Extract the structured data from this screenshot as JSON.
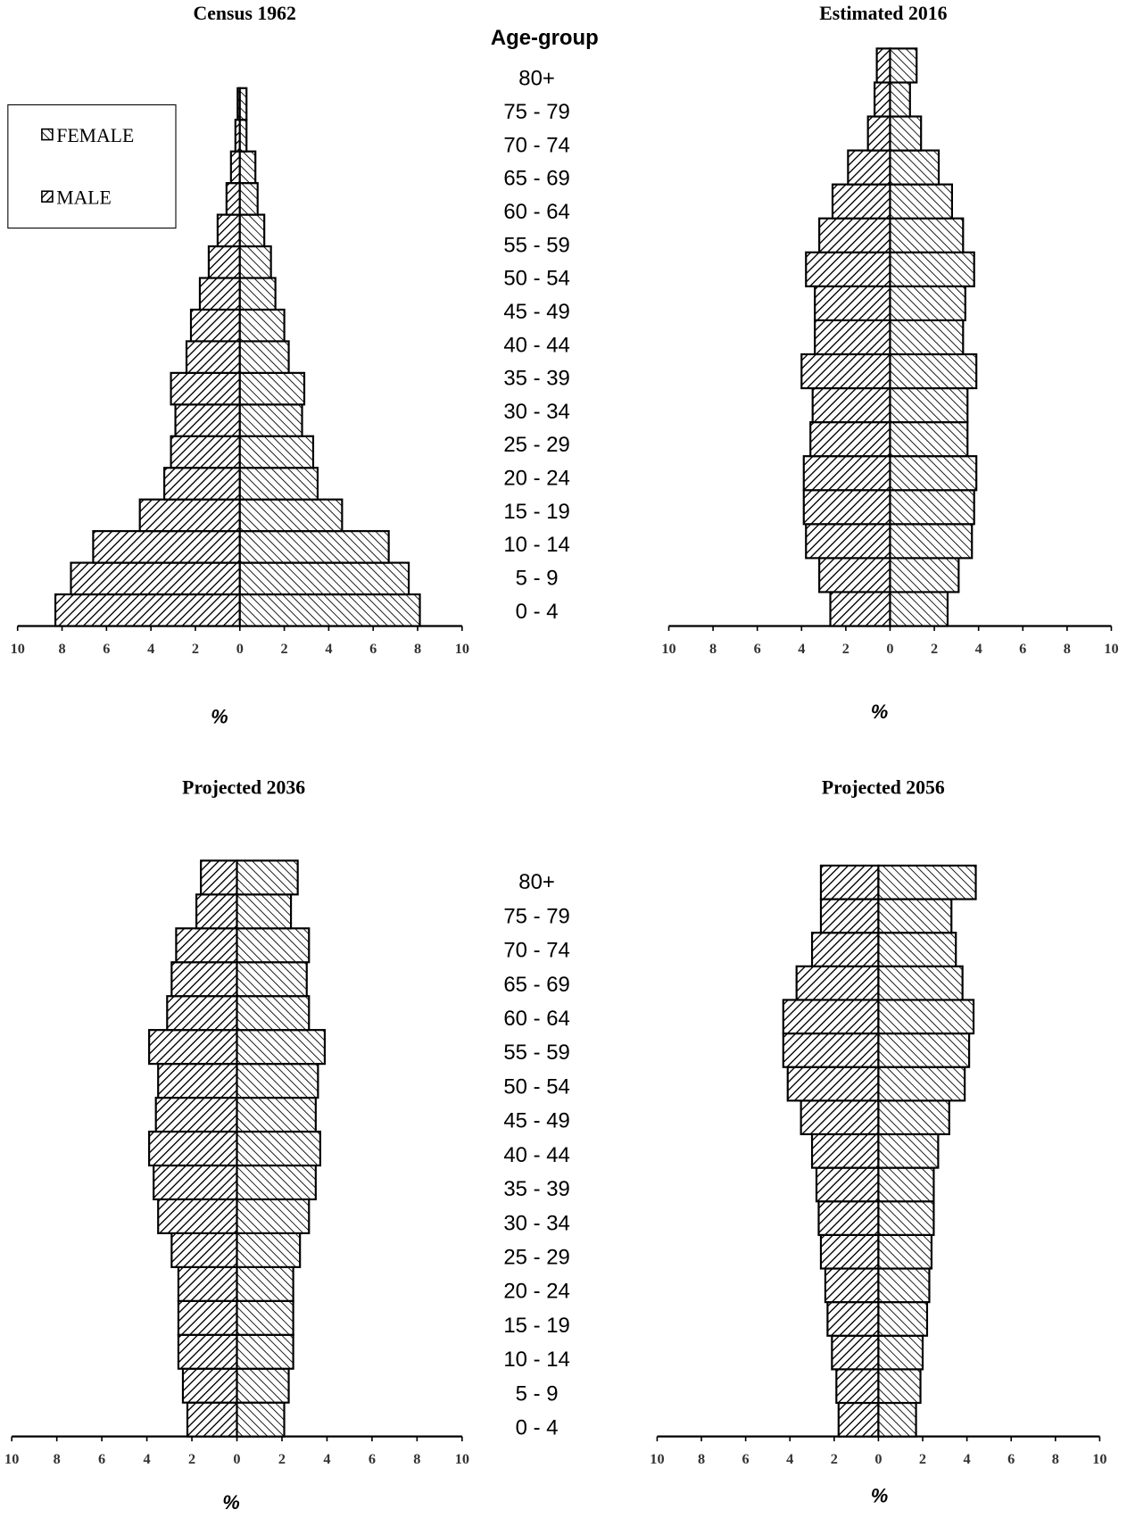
{
  "chart_data": [
    {
      "type": "pyramid",
      "title": "Census 1962",
      "categories_title": "Age-group",
      "x_label": "%",
      "categories": [
        "0 - 4",
        "5 - 9",
        "10 - 14",
        "15 - 19",
        "20 - 24",
        "25 - 29",
        "30 - 34",
        "35 - 39",
        "40 - 44",
        "45 - 49",
        "50 - 54",
        "55 - 59",
        "60 - 64",
        "65 - 69",
        "70 - 74",
        "75 - 79",
        "80+"
      ],
      "series": [
        {
          "name": "MALE",
          "color": "#000000",
          "values": [
            8.3,
            7.6,
            6.6,
            4.5,
            3.4,
            3.1,
            2.9,
            3.1,
            2.4,
            2.2,
            1.8,
            1.4,
            1.0,
            0.6,
            0.4,
            0.2,
            0.1
          ]
        },
        {
          "name": "FEMALE",
          "color": "#000000",
          "values": [
            8.1,
            7.6,
            6.7,
            4.6,
            3.5,
            3.3,
            2.8,
            2.9,
            2.2,
            2.0,
            1.6,
            1.4,
            1.1,
            0.8,
            0.7,
            0.3,
            0.3
          ]
        }
      ],
      "xlim": [
        -10,
        10
      ],
      "xticks": [
        {
          "value": -10,
          "label": "10"
        },
        {
          "value": -8,
          "label": "8"
        },
        {
          "value": -6,
          "label": "6"
        },
        {
          "value": -4,
          "label": "4"
        },
        {
          "value": -2,
          "label": "2"
        },
        0,
        2,
        4,
        6,
        8,
        10
      ]
    },
    {
      "type": "pyramid",
      "title": "Estimated 2016",
      "x_label": "%",
      "series": [
        {
          "color": "#000000",
          "values": [
            2.7,
            3.2,
            3.8,
            3.9,
            3.9,
            3.6,
            3.5,
            4.0,
            3.4,
            3.4,
            3.8,
            3.2,
            2.6,
            1.9,
            1.0,
            0.7,
            0.6
          ]
        },
        {
          "color": "#000000",
          "values": [
            2.6,
            3.1,
            3.7,
            3.8,
            3.9,
            3.5,
            3.5,
            3.9,
            3.3,
            3.4,
            3.8,
            3.3,
            2.8,
            2.2,
            1.4,
            0.9,
            1.2
          ]
        }
      ],
      "xlim": [
        -10,
        10
      ],
      "xticks": [
        {
          "value": -10,
          "label": "10"
        },
        {
          "value": -8,
          "label": "8"
        },
        {
          "value": -6,
          "label": "6"
        },
        {
          "value": -4,
          "label": "4"
        },
        {
          "value": -2,
          "label": "2"
        },
        0,
        2,
        4,
        6,
        8,
        10
      ]
    },
    {
      "type": "pyramid",
      "title": "Projected 2036",
      "x_label": "%",
      "categories": [
        "0 - 4",
        "5 - 9",
        "10 - 14",
        "15 - 19",
        "20 - 24",
        "25 - 29",
        "30 - 34",
        "35 - 39",
        "40 - 44",
        "45 - 49",
        "50 - 54",
        "55 - 59",
        "60 - 64",
        "65 - 69",
        "70 - 74",
        "75 - 79",
        "80+"
      ],
      "series": [
        {
          "color": "#000000",
          "values": [
            2.2,
            2.4,
            2.6,
            2.6,
            2.6,
            2.9,
            3.5,
            3.7,
            3.9,
            3.6,
            3.5,
            3.9,
            3.1,
            2.9,
            2.7,
            1.8,
            1.6
          ]
        },
        {
          "color": "#000000",
          "values": [
            2.1,
            2.3,
            2.5,
            2.5,
            2.5,
            2.8,
            3.2,
            3.5,
            3.7,
            3.5,
            3.6,
            3.9,
            3.2,
            3.1,
            3.2,
            2.4,
            2.7
          ]
        }
      ],
      "xlim": [
        -10,
        10
      ],
      "xticks": [
        {
          "value": -10,
          "label": "10"
        },
        {
          "value": -8,
          "label": "8"
        },
        {
          "value": -6,
          "label": "6"
        },
        {
          "value": -4,
          "label": "4"
        },
        {
          "value": -2,
          "label": "2"
        },
        0,
        2,
        4,
        6,
        8,
        10
      ]
    },
    {
      "type": "pyramid",
      "title": "Projected 2056",
      "x_label": "%",
      "series": [
        {
          "color": "#000000",
          "values": [
            1.8,
            1.9,
            2.1,
            2.3,
            2.4,
            2.6,
            2.7,
            2.8,
            3.0,
            3.5,
            4.1,
            4.3,
            4.3,
            3.7,
            3.0,
            2.6,
            2.6
          ]
        },
        {
          "color": "#000000",
          "values": [
            1.7,
            1.9,
            2.0,
            2.2,
            2.3,
            2.4,
            2.5,
            2.5,
            2.7,
            3.2,
            3.9,
            4.1,
            4.3,
            3.8,
            3.5,
            3.3,
            4.4
          ]
        }
      ],
      "xlim": [
        -10,
        10
      ],
      "xticks": [
        {
          "value": -10,
          "label": "10"
        },
        {
          "value": -8,
          "label": "8"
        },
        {
          "value": -6,
          "label": "6"
        },
        {
          "value": -4,
          "label": "4"
        },
        {
          "value": -2,
          "label": "2"
        },
        0,
        2,
        4,
        6,
        8,
        10
      ]
    }
  ]
}
